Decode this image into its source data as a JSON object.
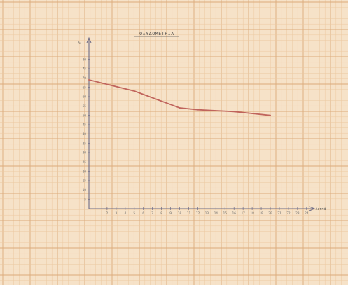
{
  "chart_data": {
    "type": "line",
    "title": "ΟΞΥΔΟΜΕΤΡΙΑ",
    "ylabel": "%",
    "xlabel": "λεπτά",
    "grid": true,
    "xlim": [
      0,
      24
    ],
    "ylim": [
      0,
      85
    ],
    "x_ticks": [
      2,
      3,
      4,
      5,
      6,
      7,
      8,
      9,
      10,
      11,
      12,
      13,
      14,
      15,
      16,
      17,
      18,
      19,
      20,
      21,
      22,
      23,
      24
    ],
    "y_ticks": [
      5,
      10,
      15,
      20,
      25,
      30,
      35,
      40,
      45,
      50,
      55,
      60,
      65,
      70,
      75,
      80
    ],
    "series": [
      {
        "x": [
          0,
          5,
          10,
          12,
          14,
          16,
          18,
          20
        ],
        "y": [
          69,
          63,
          54,
          53,
          52.5,
          52,
          51,
          50
        ]
      }
    ]
  },
  "colors": {
    "paper": "#f6e2c8",
    "grid_minor": "#ecc9a0",
    "grid_major": "#dcab7a",
    "axis": "#6e6c86",
    "line": "#c0645c"
  }
}
